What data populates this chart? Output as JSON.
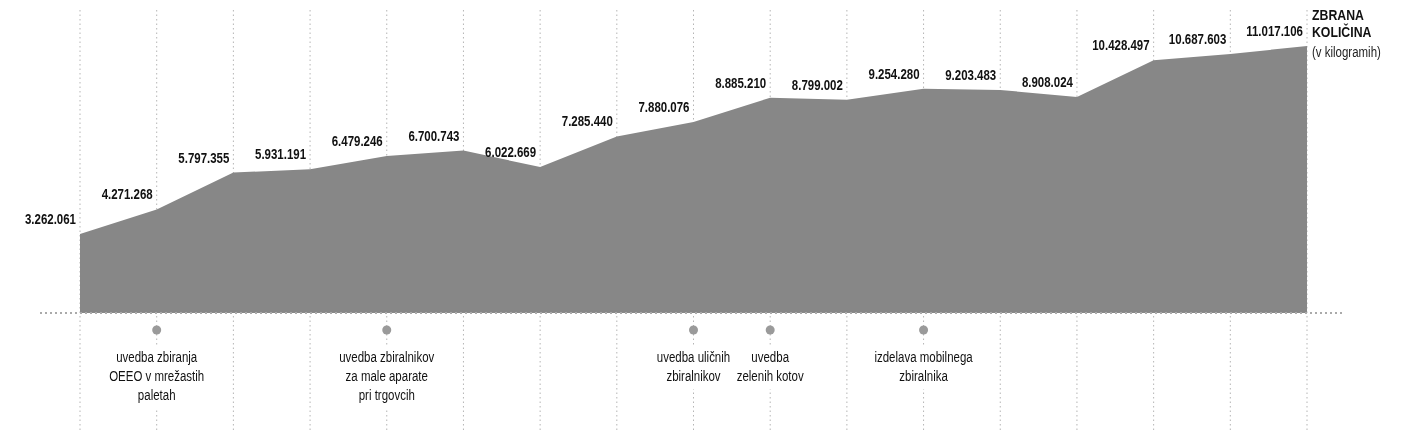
{
  "chart_data": {
    "type": "area",
    "color": "#878787",
    "categories": [
      null,
      "uvedba zbiranja\nOEEO v mrežastih\npaletah",
      null,
      null,
      "uvedba zbiralnikov\nza male aparate\npri trgovcih",
      null,
      null,
      null,
      "uvedba uličnih\nzbiralnikov",
      "uvedba\nzelenih kotov",
      null,
      "izdelava mobilnega\nzbiralnika",
      null,
      null,
      null,
      null,
      null
    ],
    "values": [
      3262061,
      4271268,
      5797355,
      5931191,
      6479246,
      6700743,
      6022669,
      7285440,
      7880076,
      8885210,
      8799002,
      9254280,
      9203483,
      8908024,
      10428497,
      10687603,
      11017106
    ],
    "value_labels": [
      "3.262.061",
      "4.271.268",
      "5.797.355",
      "5.931.191",
      "6.479.246",
      "6.700.743",
      "6.022.669",
      "7.285.440",
      "7.880.076",
      "8.885.210",
      "8.799.002",
      "9.254.280",
      "9.203.483",
      "8.908.024",
      "10.428.497",
      "10.687.603",
      "11.017.106"
    ],
    "grid": "x",
    "ylabel": "ZBRANA KOLIČINA",
    "annotations": [
      "(v kilogramih)"
    ]
  }
}
